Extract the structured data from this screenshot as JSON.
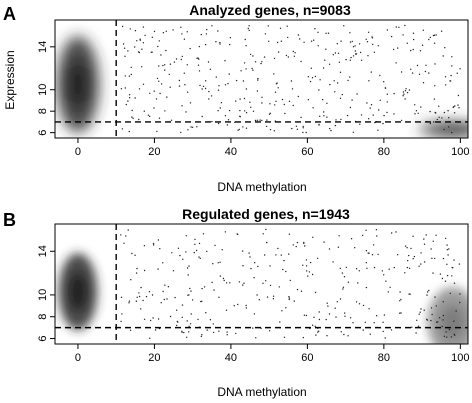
{
  "chart_data": [
    {
      "panel": "A",
      "type": "scatter",
      "title": "Analyzed genes, n=9083",
      "xlabel": "DNA methylation",
      "ylabel": "Expression",
      "xlim": [
        -6,
        102
      ],
      "ylim": [
        5.5,
        16.5
      ],
      "xticks": [
        0,
        20,
        40,
        60,
        80,
        100
      ],
      "yticks": [
        6,
        8,
        10,
        14
      ],
      "reference_lines": {
        "vertical_x": 10,
        "horizontal_y": 7,
        "style": "dashed"
      },
      "density_clusters": [
        {
          "x": 0,
          "y": 10.5,
          "spread_x": 2.5,
          "spread_y": 2.8,
          "intensity": 1.0
        },
        {
          "x": 98,
          "y": 6.3,
          "spread_x": 4,
          "spread_y": 0.45,
          "intensity": 0.9
        }
      ],
      "notes": "smoothed density scatter; sparse gene points across 10–100"
    },
    {
      "panel": "B",
      "type": "scatter",
      "title": "Regulated genes, n=1943",
      "xlabel": "DNA methylation",
      "ylabel": "",
      "xlim": [
        -6,
        102
      ],
      "ylim": [
        5.5,
        16.5
      ],
      "xticks": [
        0,
        20,
        40,
        60,
        80,
        100
      ],
      "yticks": [
        6,
        8,
        10,
        14
      ],
      "reference_lines": {
        "vertical_x": 10,
        "horizontal_y": 7,
        "style": "dashed"
      },
      "density_clusters": [
        {
          "x": 0,
          "y": 10.3,
          "spread_x": 2.3,
          "spread_y": 2.2,
          "intensity": 1.0
        },
        {
          "x": 98,
          "y": 7.5,
          "spread_x": 3,
          "spread_y": 2.0,
          "intensity": 0.35
        }
      ],
      "notes": "smoothed density scatter; sparse gene points across 10–100"
    }
  ]
}
